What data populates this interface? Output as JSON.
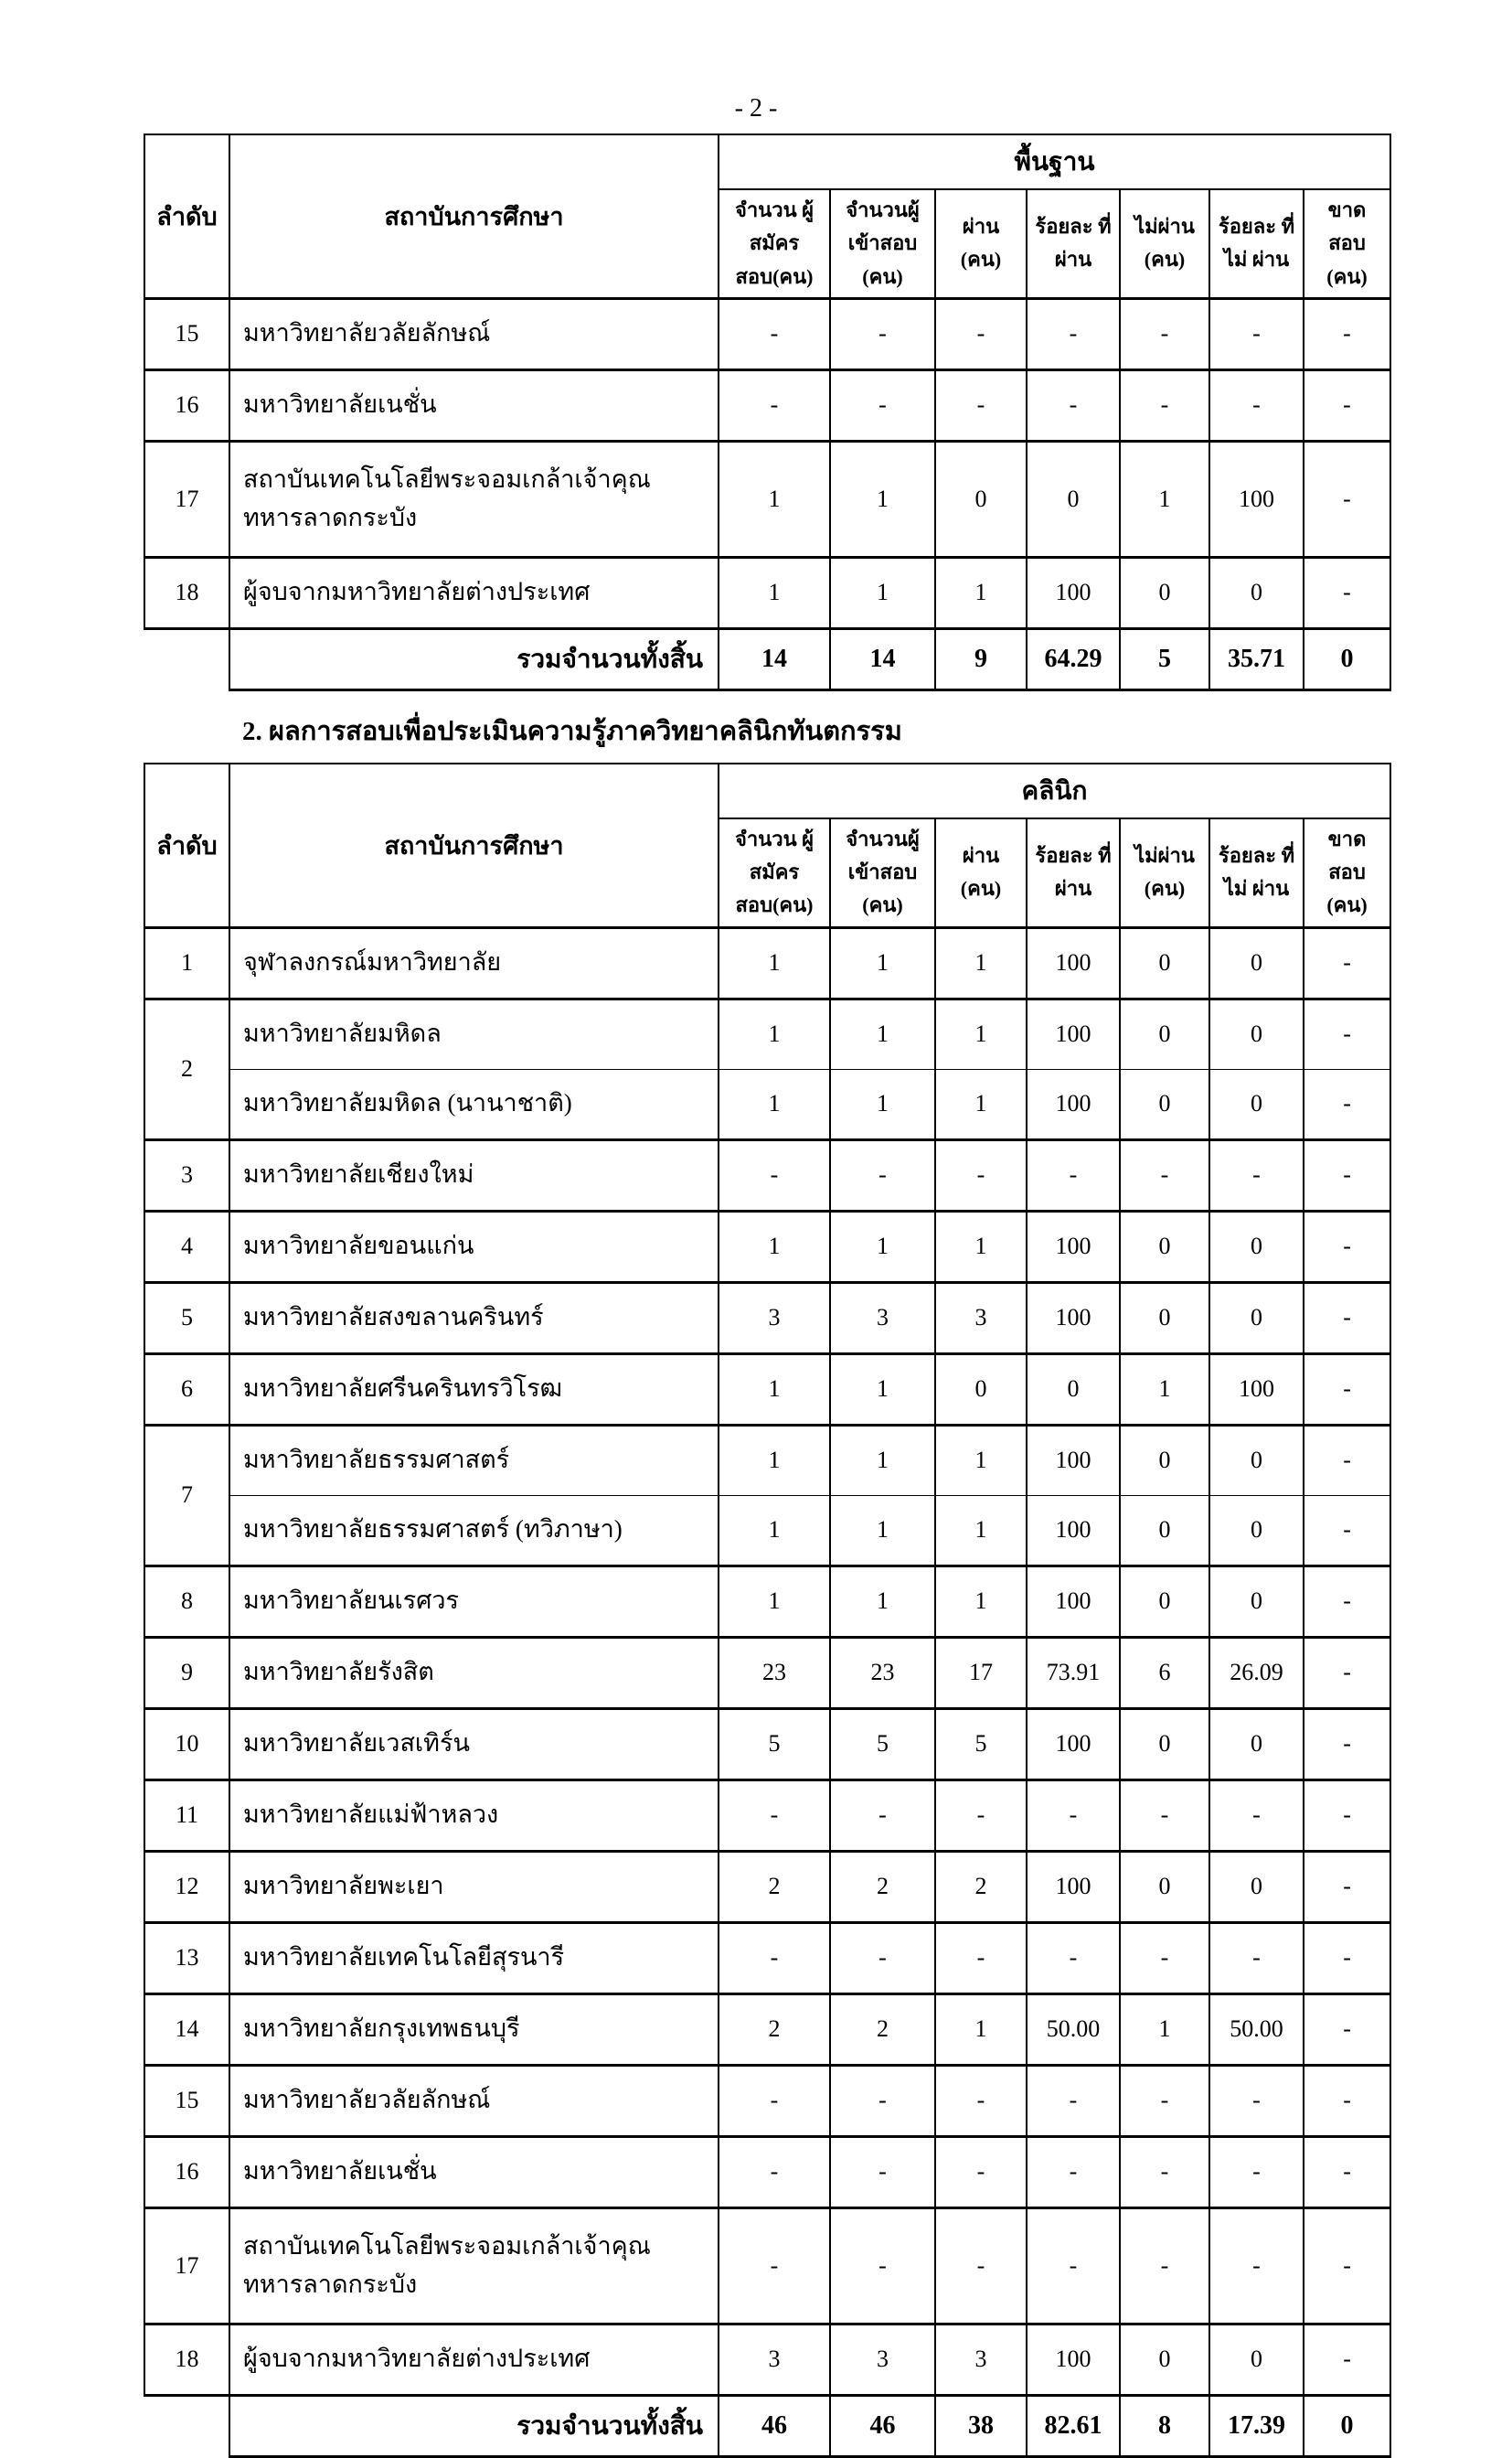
{
  "page": {
    "number_label": "- 2 -"
  },
  "columns": {
    "order": "ลำดับ",
    "institution": "สถาบันการศึกษา",
    "sub": [
      "จำนวน ผู้สมัคร สอบ(คน)",
      "จำนวนผู้ เข้าสอบ (คน)",
      "ผ่าน (คน)",
      "ร้อยละ ที่ผ่าน",
      "ไม่ผ่าน (คน)",
      "ร้อยละ ที่ไม่ ผ่าน",
      "ขาด สอบ (คน)"
    ]
  },
  "table1": {
    "group_header": "พื้นฐาน",
    "rows": [
      {
        "no": "15",
        "name": "มหาวิทยาลัยวลัยลักษณ์",
        "v": [
          "-",
          "-",
          "-",
          "-",
          "-",
          "-",
          "-"
        ]
      },
      {
        "no": "16",
        "name": "มหาวิทยาลัยเนชั่น",
        "v": [
          "-",
          "-",
          "-",
          "-",
          "-",
          "-",
          "-"
        ]
      },
      {
        "no": "17",
        "name": "สถาบันเทคโนโลยีพระจอมเกล้าเจ้าคุณ ทหารลาดกระบัง",
        "v": [
          "1",
          "1",
          "0",
          "0",
          "1",
          "100",
          "-"
        ]
      },
      {
        "no": "18",
        "name": "ผู้จบจากมหาวิทยาลัยต่างประเทศ",
        "v": [
          "1",
          "1",
          "1",
          "100",
          "0",
          "0",
          "-"
        ]
      }
    ],
    "total": {
      "label": "รวมจำนวนทั้งสิ้น",
      "values": [
        "14",
        "14",
        "9",
        "64.29",
        "5",
        "35.71",
        "0"
      ]
    }
  },
  "section2": {
    "title": "2. ผลการสอบเพื่อประเมินความรู้ภาควิทยาคลินิกทันตกรรม"
  },
  "table2": {
    "group_header": "คลินิก",
    "rows": [
      {
        "no": "1",
        "name": "จุฬาลงกรณ์มหาวิทยาลัย",
        "v": [
          "1",
          "1",
          "1",
          "100",
          "0",
          "0",
          "-"
        ]
      },
      {
        "no": "2",
        "name": "มหาวิทยาลัยมหิดล",
        "v": [
          "1",
          "1",
          "1",
          "100",
          "0",
          "0",
          "-"
        ]
      },
      {
        "no": "",
        "name": "มหาวิทยาลัยมหิดล (นานาชาติ)",
        "v": [
          "1",
          "1",
          "1",
          "100",
          "0",
          "0",
          "-"
        ]
      },
      {
        "no": "3",
        "name": "มหาวิทยาลัยเชียงใหม่",
        "v": [
          "-",
          "-",
          "-",
          "-",
          "-",
          "-",
          "-"
        ]
      },
      {
        "no": "4",
        "name": "มหาวิทยาลัยขอนแก่น",
        "v": [
          "1",
          "1",
          "1",
          "100",
          "0",
          "0",
          "-"
        ]
      },
      {
        "no": "5",
        "name": "มหาวิทยาลัยสงขลานครินทร์",
        "v": [
          "3",
          "3",
          "3",
          "100",
          "0",
          "0",
          "-"
        ]
      },
      {
        "no": "6",
        "name": "มหาวิทยาลัยศรีนครินทรวิโรฒ",
        "v": [
          "1",
          "1",
          "0",
          "0",
          "1",
          "100",
          "-"
        ]
      },
      {
        "no": "7",
        "name": "มหาวิทยาลัยธรรมศาสตร์",
        "v": [
          "1",
          "1",
          "1",
          "100",
          "0",
          "0",
          "-"
        ]
      },
      {
        "no": "",
        "name": "มหาวิทยาลัยธรรมศาสตร์ (ทวิภาษา)",
        "v": [
          "1",
          "1",
          "1",
          "100",
          "0",
          "0",
          "-"
        ]
      },
      {
        "no": "8",
        "name": "มหาวิทยาลัยนเรศวร",
        "v": [
          "1",
          "1",
          "1",
          "100",
          "0",
          "0",
          "-"
        ]
      },
      {
        "no": "9",
        "name": "มหาวิทยาลัยรังสิต",
        "v": [
          "23",
          "23",
          "17",
          "73.91",
          "6",
          "26.09",
          "-"
        ]
      },
      {
        "no": "10",
        "name": "มหาวิทยาลัยเวสเทิร์น",
        "v": [
          "5",
          "5",
          "5",
          "100",
          "0",
          "0",
          "-"
        ]
      },
      {
        "no": "11",
        "name": "มหาวิทยาลัยแม่ฟ้าหลวง",
        "v": [
          "-",
          "-",
          "-",
          "-",
          "-",
          "-",
          "-"
        ]
      },
      {
        "no": "12",
        "name": "มหาวิทยาลัยพะเยา",
        "v": [
          "2",
          "2",
          "2",
          "100",
          "0",
          "0",
          "-"
        ]
      },
      {
        "no": "13",
        "name": "มหาวิทยาลัยเทคโนโลยีสุรนารี",
        "v": [
          "-",
          "-",
          "-",
          "-",
          "-",
          "-",
          "-"
        ]
      },
      {
        "no": "14",
        "name": "มหาวิทยาลัยกรุงเทพธนบุรี",
        "v": [
          "2",
          "2",
          "1",
          "50.00",
          "1",
          "50.00",
          "-"
        ]
      },
      {
        "no": "15",
        "name": "มหาวิทยาลัยวลัยลักษณ์",
        "v": [
          "-",
          "-",
          "-",
          "-",
          "-",
          "-",
          "-"
        ]
      },
      {
        "no": "16",
        "name": "มหาวิทยาลัยเนชั่น",
        "v": [
          "-",
          "-",
          "-",
          "-",
          "-",
          "-",
          "-"
        ]
      },
      {
        "no": "17",
        "name": "สถาบันเทคโนโลยีพระจอมเกล้าเจ้าคุณ ทหารลาดกระบัง",
        "v": [
          "-",
          "-",
          "-",
          "-",
          "-",
          "-",
          "-"
        ]
      },
      {
        "no": "18",
        "name": "ผู้จบจากมหาวิทยาลัยต่างประเทศ",
        "v": [
          "3",
          "3",
          "3",
          "100",
          "0",
          "0",
          "-"
        ]
      }
    ],
    "total": {
      "label": "รวมจำนวนทั้งสิ้น",
      "values": [
        "46",
        "46",
        "38",
        "82.61",
        "8",
        "17.39",
        "0"
      ]
    }
  }
}
